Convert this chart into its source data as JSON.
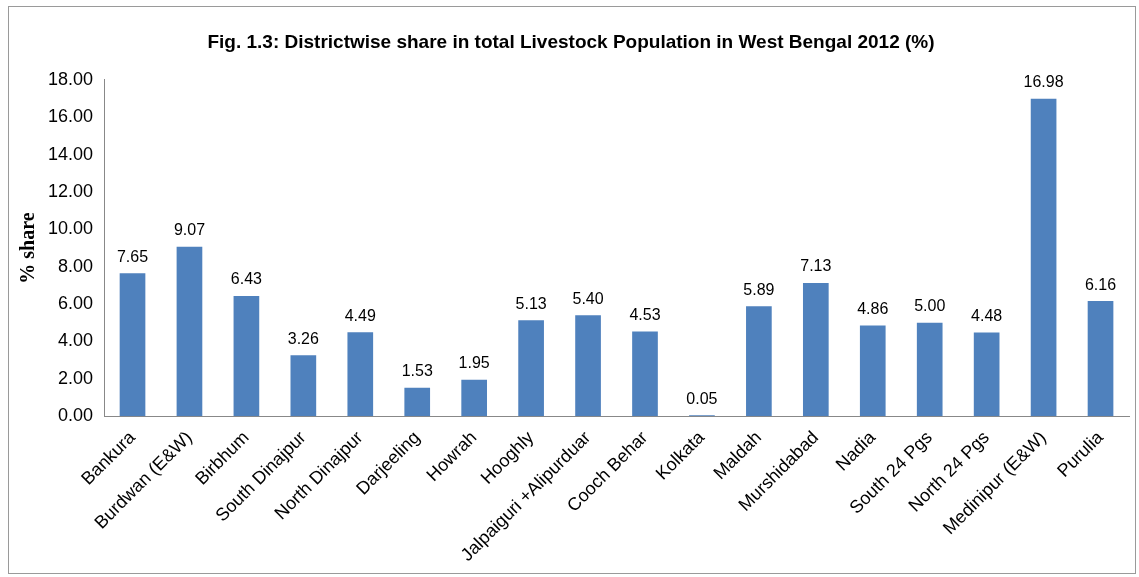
{
  "chart_data": {
    "type": "bar",
    "title": "Fig. 1.3: Districtwise share in total Livestock Population in West Bengal 2012 (%)",
    "ylabel": "% share",
    "categories": [
      "Bankura",
      "Burdwan (E&W)",
      "Birbhum",
      "South Dinajpur",
      "North Dinajpur",
      "Darjeeling",
      "Howrah",
      "Hooghly",
      "Jalpaiguri +Alipurduar",
      "Cooch Behar",
      "Kolkata",
      "Maldah",
      "Murshidabad",
      "Nadia",
      "South 24 Pgs",
      "North 24 Pgs",
      "Medinipur (E&W)",
      "Purulia"
    ],
    "values": [
      7.65,
      9.07,
      6.43,
      3.26,
      4.49,
      1.53,
      1.95,
      5.13,
      5.4,
      4.53,
      0.05,
      5.89,
      7.13,
      4.86,
      5.0,
      4.48,
      16.98,
      6.16
    ],
    "value_labels": [
      "7.65",
      "9.07",
      "6.43",
      "3.26",
      "4.49",
      "1.53",
      "1.95",
      "5.13",
      "5.40",
      "4.53",
      "0.05",
      "5.89",
      "7.13",
      "4.86",
      "5.00",
      "4.48",
      "16.98",
      "6.16"
    ],
    "color": "#4f81bd",
    "ylim": [
      0,
      18
    ],
    "yticks": [
      {
        "value": 0,
        "label": "0.00"
      },
      {
        "value": 2,
        "label": "2.00"
      },
      {
        "value": 4,
        "label": "4.00"
      },
      {
        "value": 6,
        "label": "6.00"
      },
      {
        "value": 8,
        "label": "8.00"
      },
      {
        "value": 10,
        "label": "10.00"
      },
      {
        "value": 12,
        "label": "12.00"
      },
      {
        "value": 14,
        "label": "14.00"
      },
      {
        "value": 16,
        "label": "16.00"
      },
      {
        "value": 18,
        "label": "18.00"
      }
    ],
    "grid": false,
    "legend": false
  }
}
